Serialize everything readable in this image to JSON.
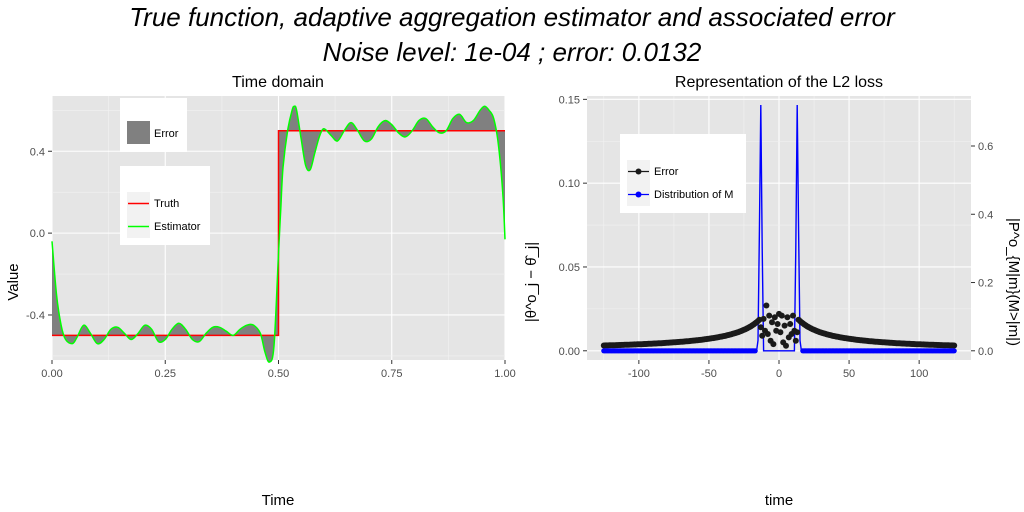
{
  "title_line1": "True function, adaptive aggregation estimator and associated error",
  "title_line2": "Noise level: 1e-04 ; error:  0.0132",
  "chart_data": [
    {
      "type": "line",
      "title": "Time domain",
      "xlabel": "Time",
      "ylabel": "Value",
      "xlim": [
        0,
        1
      ],
      "ylim": [
        -0.62,
        0.67
      ],
      "xticks": [
        0,
        0.25,
        0.5,
        0.75,
        1
      ],
      "xtick_labels": [
        "0.00",
        "0.25",
        "0.50",
        "0.75",
        "1.00"
      ],
      "yticks": [
        -0.4,
        0,
        0.4
      ],
      "ytick_labels": [
        "-0.4",
        "0.0",
        "0.4"
      ],
      "grid": true,
      "colors": {
        "truth": "#ff0000",
        "estimator": "#00ff00",
        "error": "#808080"
      },
      "legend_error": {
        "title": "",
        "items": [
          "Error"
        ]
      },
      "legend_lines": {
        "title": "",
        "items": [
          "Truth",
          "Estimator"
        ]
      },
      "series": [
        {
          "name": "Truth",
          "x": [
            0,
            0.5,
            0.5,
            1
          ],
          "y": [
            -0.5,
            -0.5,
            0.5,
            0.5
          ]
        },
        {
          "name": "Estimator",
          "x": [
            0,
            0.01,
            0.02,
            0.03,
            0.045,
            0.055,
            0.07,
            0.085,
            0.1,
            0.115,
            0.13,
            0.145,
            0.16,
            0.175,
            0.19,
            0.205,
            0.22,
            0.235,
            0.25,
            0.265,
            0.28,
            0.295,
            0.31,
            0.325,
            0.34,
            0.355,
            0.37,
            0.385,
            0.4,
            0.415,
            0.43,
            0.445,
            0.46,
            0.47,
            0.48,
            0.49,
            0.5,
            0.505,
            0.51,
            0.52,
            0.53,
            0.535,
            0.54,
            0.55,
            0.56,
            0.57,
            0.58,
            0.59,
            0.6,
            0.615,
            0.63,
            0.645,
            0.66,
            0.675,
            0.69,
            0.705,
            0.72,
            0.735,
            0.75,
            0.765,
            0.78,
            0.795,
            0.81,
            0.825,
            0.84,
            0.855,
            0.87,
            0.885,
            0.9,
            0.915,
            0.93,
            0.945,
            0.955,
            0.965,
            0.975,
            0.985,
            0.995,
            1.0
          ],
          "y": [
            -0.04,
            -0.3,
            -0.45,
            -0.52,
            -0.54,
            -0.51,
            -0.45,
            -0.49,
            -0.54,
            -0.52,
            -0.47,
            -0.46,
            -0.49,
            -0.52,
            -0.49,
            -0.45,
            -0.47,
            -0.53,
            -0.52,
            -0.47,
            -0.44,
            -0.47,
            -0.52,
            -0.53,
            -0.49,
            -0.46,
            -0.46,
            -0.48,
            -0.5,
            -0.47,
            -0.45,
            -0.45,
            -0.49,
            -0.58,
            -0.63,
            -0.55,
            -0.1,
            0.12,
            0.32,
            0.5,
            0.6,
            0.62,
            0.6,
            0.46,
            0.33,
            0.31,
            0.39,
            0.47,
            0.51,
            0.48,
            0.45,
            0.5,
            0.54,
            0.5,
            0.45,
            0.46,
            0.52,
            0.55,
            0.53,
            0.49,
            0.47,
            0.5,
            0.55,
            0.56,
            0.52,
            0.49,
            0.5,
            0.56,
            0.58,
            0.54,
            0.55,
            0.6,
            0.62,
            0.6,
            0.56,
            0.44,
            0.2,
            -0.03
          ]
        }
      ]
    },
    {
      "type": "scatter",
      "title": "Representation of the L2 loss",
      "xlabel": "time",
      "ylabel": "|θ^o_j − θ̂_j|",
      "ylabel_right": "|P^o_{M|m}(M>|m|)",
      "xlim": [
        -137,
        137
      ],
      "ylim": [
        -0.0055,
        0.152
      ],
      "ylim_right": [
        -0.027,
        0.7465
      ],
      "xticks": [
        -100,
        -50,
        0,
        50,
        100
      ],
      "xtick_labels": [
        "-100",
        "-50",
        "0",
        "50",
        "100"
      ],
      "yticks": [
        0,
        0.05,
        0.1,
        0.15
      ],
      "ytick_labels": [
        "0.00",
        "0.05",
        "0.10",
        "0.15"
      ],
      "yticks_right": [
        0,
        0.2,
        0.4,
        0.6
      ],
      "ytick_labels_right": [
        "0.0",
        "0.2",
        "0.4",
        "0.6"
      ],
      "grid": true,
      "colors": {
        "error": "#1a1a1a",
        "distribution": "#0000ff"
      },
      "legend": {
        "title": "",
        "items": [
          "Error",
          "Distribution of M"
        ]
      },
      "series": [
        {
          "name": "Error",
          "x_range": [
            -125,
            125
          ],
          "amplitude": 0.048,
          "decay_scale": 8.8,
          "center_points": [
            {
              "x": -13,
              "y": 0.014
            },
            {
              "x": -12,
              "y": 0.009
            },
            {
              "x": -11,
              "y": 0.019
            },
            {
              "x": -10,
              "y": 0.012
            },
            {
              "x": -9,
              "y": 0.027
            },
            {
              "x": -8,
              "y": 0.01
            },
            {
              "x": -7,
              "y": 0.021
            },
            {
              "x": -6,
              "y": 0.006
            },
            {
              "x": -5,
              "y": 0.017
            },
            {
              "x": -4,
              "y": 0.004
            },
            {
              "x": -3,
              "y": 0.02
            },
            {
              "x": -2,
              "y": 0.012
            },
            {
              "x": -1,
              "y": 0.016
            },
            {
              "x": 0,
              "y": 0.022
            },
            {
              "x": 1,
              "y": 0.011
            },
            {
              "x": 2,
              "y": 0.021
            },
            {
              "x": 3,
              "y": 0.005
            },
            {
              "x": 4,
              "y": 0.015
            },
            {
              "x": 5,
              "y": 0.003
            },
            {
              "x": 6,
              "y": 0.02
            },
            {
              "x": 7,
              "y": 0.008
            },
            {
              "x": 8,
              "y": 0.016
            },
            {
              "x": 9,
              "y": 0.01
            },
            {
              "x": 10,
              "y": 0.021
            },
            {
              "x": 11,
              "y": 0.012
            },
            {
              "x": 12,
              "y": 0.006
            },
            {
              "x": 13,
              "y": 0.011
            }
          ]
        },
        {
          "name": "Distribution of M",
          "axis": "right",
          "x": [
            -125,
            -16,
            -15,
            -14,
            -13,
            -12,
            -11,
            11,
            12,
            13,
            14,
            15,
            16,
            125
          ],
          "y": [
            0,
            0,
            0.03,
            0.35,
            0.72,
            0.3,
            0,
            0,
            0.3,
            0.72,
            0.35,
            0.03,
            0,
            0
          ]
        }
      ]
    }
  ]
}
